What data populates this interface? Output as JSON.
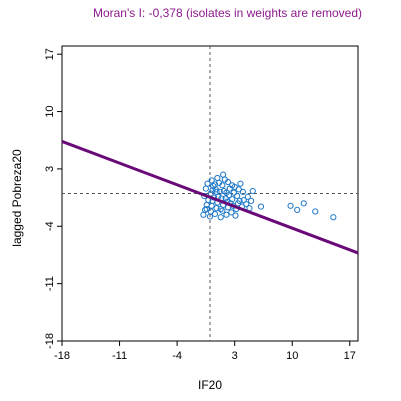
{
  "chart_data": {
    "type": "scatter",
    "title": "Moran's I: -0,378 (isolates in weights are removed)",
    "xlabel": "IF20",
    "ylabel": "lagged Pobreza20",
    "xlim": [
      -18,
      18
    ],
    "ylim": [
      -18,
      18
    ],
    "xticks": [
      -18,
      -11,
      -4,
      3,
      10,
      17
    ],
    "yticks": [
      -18,
      -11,
      -4,
      3,
      10,
      17
    ],
    "xtick_labels": [
      "-18",
      "-11",
      "-4",
      "3",
      "10",
      "17"
    ],
    "ytick_labels": [
      "-18",
      "-11",
      "-4",
      "3",
      "10",
      "17"
    ],
    "vline_x": 0,
    "hline_y": 0,
    "regression_line": {
      "slope": -0.378,
      "intercept": -0.45
    },
    "points": [
      [
        -0.8,
        -2.6
      ],
      [
        -0.6,
        -2.0
      ],
      [
        -0.4,
        -1.4
      ],
      [
        -0.2,
        -0.8
      ],
      [
        -0.5,
        0.6
      ],
      [
        -0.3,
        1.2
      ],
      [
        0.0,
        -2.8
      ],
      [
        0.1,
        -2.2
      ],
      [
        0.2,
        -1.5
      ],
      [
        0.3,
        -0.9
      ],
      [
        0.1,
        0.0
      ],
      [
        0.4,
        0.9
      ],
      [
        0.2,
        1.6
      ],
      [
        0.6,
        -2.5
      ],
      [
        0.8,
        -1.8
      ],
      [
        0.9,
        -1.1
      ],
      [
        1.0,
        -0.4
      ],
      [
        0.7,
        0.5
      ],
      [
        1.1,
        1.3
      ],
      [
        0.9,
        1.9
      ],
      [
        1.3,
        -2.9
      ],
      [
        1.5,
        -2.1
      ],
      [
        1.6,
        -1.4
      ],
      [
        1.4,
        -0.6
      ],
      [
        1.7,
        0.3
      ],
      [
        1.5,
        1.0
      ],
      [
        1.8,
        1.7
      ],
      [
        2.0,
        -2.6
      ],
      [
        2.2,
        -1.7
      ],
      [
        2.1,
        -1.0
      ],
      [
        2.3,
        -0.2
      ],
      [
        2.4,
        0.6
      ],
      [
        2.2,
        1.4
      ],
      [
        2.6,
        -2.3
      ],
      [
        2.8,
        -1.5
      ],
      [
        2.7,
        -0.7
      ],
      [
        2.9,
        0.1
      ],
      [
        3.0,
        0.8
      ],
      [
        3.2,
        -1.9
      ],
      [
        3.4,
        -1.2
      ],
      [
        3.3,
        -0.3
      ],
      [
        3.5,
        0.5
      ],
      [
        3.7,
        1.2
      ],
      [
        3.9,
        -1.6
      ],
      [
        4.1,
        -0.8
      ],
      [
        4.0,
        0.2
      ],
      [
        4.4,
        -1.3
      ],
      [
        4.6,
        -0.4
      ],
      [
        5.0,
        -0.9
      ],
      [
        5.2,
        0.3
      ],
      [
        6.2,
        -1.6
      ],
      [
        9.8,
        -1.5
      ],
      [
        10.6,
        -2.0
      ],
      [
        11.4,
        -1.2
      ],
      [
        12.8,
        -2.2
      ],
      [
        15.0,
        -2.9
      ],
      [
        -0.7,
        -0.3
      ],
      [
        0.5,
        -0.5
      ],
      [
        1.2,
        0.2
      ],
      [
        2.5,
        -1.2
      ],
      [
        1.9,
        -0.6
      ],
      [
        0.3,
        0.4
      ],
      [
        3.1,
        -2.7
      ],
      [
        0.6,
        1.1
      ],
      [
        1.3,
        -1.9
      ],
      [
        2.0,
        0.1
      ],
      [
        -0.4,
        -1.9
      ],
      [
        0.8,
        0.2
      ],
      [
        2.7,
        1.0
      ],
      [
        3.6,
        -0.9
      ],
      [
        4.8,
        -1.8
      ],
      [
        1.6,
        2.3
      ]
    ]
  }
}
